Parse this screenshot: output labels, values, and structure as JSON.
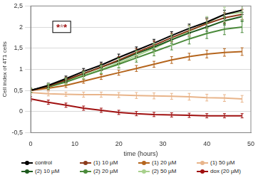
{
  "chart_data": {
    "type": "line",
    "x_label": "time (hours)",
    "y_label": "Cell index of 4T1 cells",
    "annotation": {
      "text": "***",
      "colors": [
        "#a01010",
        "#c8a0a0",
        "#a01010"
      ]
    },
    "x": [
      0,
      4,
      8,
      12,
      16,
      20,
      24,
      28,
      32,
      36,
      40,
      44,
      48
    ],
    "xlim": [
      0,
      50
    ],
    "xticks": [
      0,
      10,
      20,
      30,
      40,
      50
    ],
    "ylim": [
      -0.5,
      2.5
    ],
    "yticks": [
      {
        "value": -0.5,
        "label": "-0,5"
      },
      0,
      {
        "value": 0.5,
        "label": "0,5"
      },
      1,
      {
        "value": 1.5,
        "label": "1,5"
      },
      2,
      {
        "value": 2.5,
        "label": "2,5"
      }
    ],
    "grid": true,
    "legend": "bottom",
    "series": [
      {
        "name": "control",
        "color": "#000000",
        "values": [
          0.5,
          0.62,
          0.78,
          0.95,
          1.1,
          1.28,
          1.45,
          1.62,
          1.8,
          1.97,
          2.12,
          2.3,
          2.4
        ],
        "error": [
          0.05,
          0.05,
          0.06,
          0.07,
          0.07,
          0.08,
          0.08,
          0.09,
          0.09,
          0.1,
          0.1,
          0.1,
          0.1
        ]
      },
      {
        "name": "(1) 10 µM",
        "color": "#8b3a1a",
        "values": [
          0.5,
          0.6,
          0.75,
          0.9,
          1.05,
          1.22,
          1.4,
          1.57,
          1.75,
          1.92,
          2.08,
          2.22,
          2.3
        ],
        "error": [
          0.05,
          0.05,
          0.06,
          0.07,
          0.08,
          0.08,
          0.09,
          0.1,
          0.1,
          0.11,
          0.11,
          0.12,
          0.12
        ]
      },
      {
        "name": "(1) 20 µM",
        "color": "#b5651d",
        "values": [
          0.5,
          0.55,
          0.62,
          0.72,
          0.82,
          0.92,
          1.02,
          1.12,
          1.22,
          1.3,
          1.36,
          1.4,
          1.42
        ],
        "error": [
          0.04,
          0.04,
          0.05,
          0.05,
          0.06,
          0.06,
          0.07,
          0.07,
          0.08,
          0.08,
          0.09,
          0.09,
          0.09
        ]
      },
      {
        "name": "(1) 50 µM",
        "color": "#e8b48a",
        "values": [
          0.45,
          0.42,
          0.41,
          0.4,
          0.4,
          0.39,
          0.38,
          0.37,
          0.36,
          0.35,
          0.33,
          0.32,
          0.3
        ],
        "error": [
          0.05,
          0.05,
          0.05,
          0.06,
          0.06,
          0.06,
          0.07,
          0.07,
          0.07,
          0.08,
          0.08,
          0.08,
          0.08
        ]
      },
      {
        "name": "(2) 10 µM",
        "color": "#1e5a1e",
        "values": [
          0.5,
          0.6,
          0.74,
          0.9,
          1.05,
          1.2,
          1.37,
          1.53,
          1.7,
          1.86,
          2.0,
          2.15,
          2.25
        ],
        "error": [
          0.05,
          0.05,
          0.06,
          0.06,
          0.07,
          0.07,
          0.08,
          0.08,
          0.09,
          0.09,
          0.1,
          0.1,
          0.1
        ]
      },
      {
        "name": "(2) 20 µM",
        "color": "#4a8a3a",
        "values": [
          0.5,
          0.58,
          0.7,
          0.84,
          0.98,
          1.12,
          1.27,
          1.42,
          1.57,
          1.72,
          1.85,
          1.95,
          2.0
        ],
        "error": [
          0.05,
          0.05,
          0.06,
          0.07,
          0.08,
          0.09,
          0.1,
          0.1,
          0.11,
          0.12,
          0.12,
          0.13,
          0.13
        ]
      },
      {
        "name": "(2) 50 µM",
        "color": "#a8d08d",
        "values": [
          0.5,
          0.6,
          0.72,
          0.86,
          1.0,
          1.15,
          1.32,
          1.5,
          1.7,
          1.9,
          2.1,
          2.3,
          2.35
        ],
        "error": [
          0.05,
          0.06,
          0.07,
          0.08,
          0.09,
          0.1,
          0.11,
          0.12,
          0.13,
          0.14,
          0.15,
          0.17,
          0.18
        ]
      },
      {
        "name": "dox (20 µM)",
        "color": "#a01010",
        "values": [
          0.3,
          0.22,
          0.15,
          0.08,
          0.03,
          -0.02,
          -0.05,
          -0.07,
          -0.08,
          -0.09,
          -0.1,
          -0.1,
          -0.1
        ],
        "error": [
          0.05,
          0.05,
          0.05,
          0.05,
          0.05,
          0.05,
          0.05,
          0.05,
          0.05,
          0.05,
          0.05,
          0.05,
          0.05
        ]
      }
    ]
  }
}
